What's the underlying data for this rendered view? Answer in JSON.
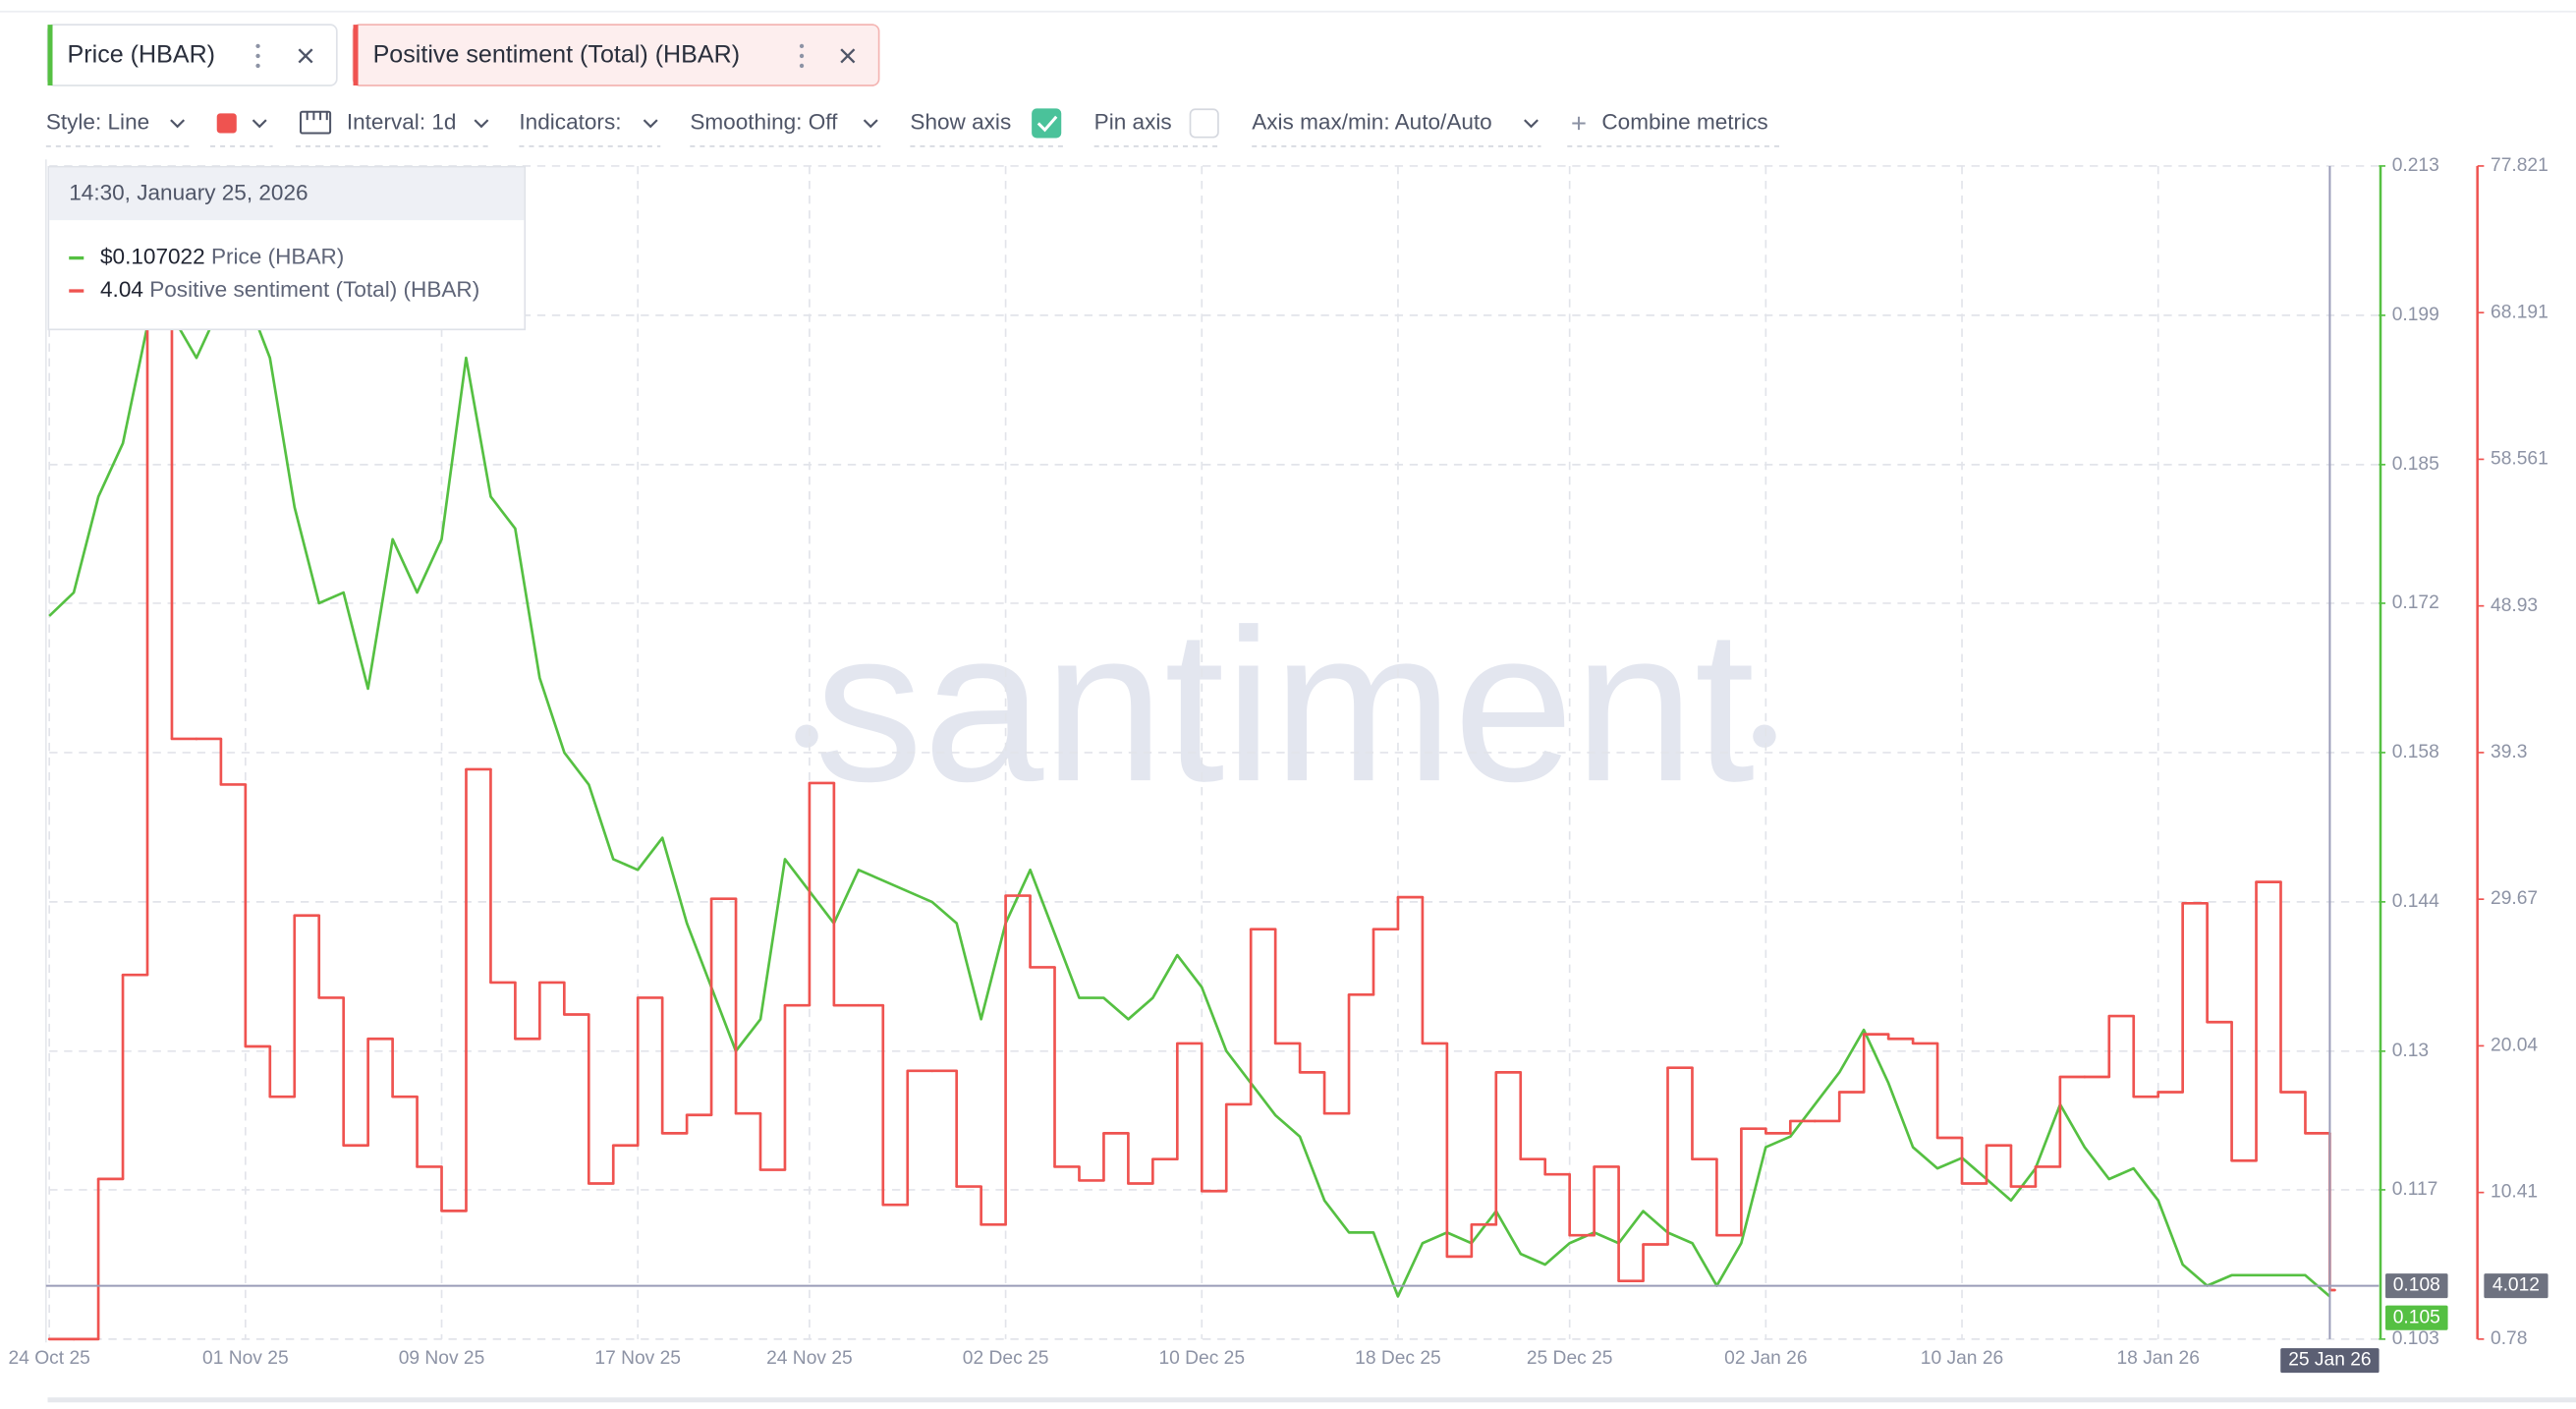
{
  "chart_data": {
    "type": "line",
    "tabs": [
      "Price (HBAR)",
      "Positive sentiment (Total) (HBAR)"
    ],
    "toolbar": [
      "Style: Line",
      "Interval: 1d",
      "Indicators:",
      "Smoothing: Off",
      "Show axis",
      "Pin axis",
      "Axis max/min: Auto/Auto",
      "Combine metrics"
    ],
    "tooltip": {
      "date": "14:30, January 25, 2026",
      "values": [
        "$0.107022",
        "4.04"
      ]
    },
    "watermark": "santiment",
    "x": [
      "2025-10-24",
      "2025-10-25",
      "2025-10-26",
      "2025-10-27",
      "2025-10-28",
      "2025-10-29",
      "2025-10-30",
      "2025-10-31",
      "2025-11-01",
      "2025-11-02",
      "2025-11-03",
      "2025-11-04",
      "2025-11-05",
      "2025-11-06",
      "2025-11-07",
      "2025-11-08",
      "2025-11-09",
      "2025-11-10",
      "2025-11-11",
      "2025-11-12",
      "2025-11-13",
      "2025-11-14",
      "2025-11-15",
      "2025-11-16",
      "2025-11-17",
      "2025-11-18",
      "2025-11-19",
      "2025-11-20",
      "2025-11-21",
      "2025-11-22",
      "2025-11-23",
      "2025-11-24",
      "2025-11-25",
      "2025-11-26",
      "2025-11-27",
      "2025-11-28",
      "2025-11-29",
      "2025-11-30",
      "2025-12-01",
      "2025-12-02",
      "2025-12-03",
      "2025-12-04",
      "2025-12-05",
      "2025-12-06",
      "2025-12-07",
      "2025-12-08",
      "2025-12-09",
      "2025-12-10",
      "2025-12-11",
      "2025-12-12",
      "2025-12-13",
      "2025-12-14",
      "2025-12-15",
      "2025-12-16",
      "2025-12-17",
      "2025-12-18",
      "2025-12-19",
      "2025-12-20",
      "2025-12-21",
      "2025-12-22",
      "2025-12-23",
      "2025-12-24",
      "2025-12-25",
      "2025-12-26",
      "2025-12-27",
      "2025-12-28",
      "2025-12-29",
      "2025-12-30",
      "2025-12-31",
      "2026-01-01",
      "2026-01-02",
      "2026-01-03",
      "2026-01-04",
      "2026-01-05",
      "2026-01-06",
      "2026-01-07",
      "2026-01-08",
      "2026-01-09",
      "2026-01-10",
      "2026-01-11",
      "2026-01-12",
      "2026-01-13",
      "2026-01-14",
      "2026-01-15",
      "2026-01-16",
      "2026-01-17",
      "2026-01-18",
      "2026-01-19",
      "2026-01-20",
      "2026-01-21",
      "2026-01-22",
      "2026-01-23",
      "2026-01-24",
      "2026-01-25"
    ],
    "series": [
      {
        "name": "Price (HBAR)",
        "color": "#55c042",
        "axis": "y",
        "values": [
          0.1708,
          0.173,
          0.182,
          0.187,
          0.198,
          0.199,
          0.195,
          0.2,
          0.201,
          0.195,
          0.181,
          0.172,
          0.173,
          0.164,
          0.178,
          0.173,
          0.178,
          0.195,
          0.182,
          0.179,
          0.165,
          0.158,
          0.155,
          0.148,
          0.147,
          0.15,
          0.142,
          0.136,
          0.13,
          0.133,
          0.148,
          0.145,
          0.142,
          0.147,
          0.146,
          0.145,
          0.144,
          0.142,
          0.133,
          0.142,
          0.147,
          0.141,
          0.135,
          0.135,
          0.133,
          0.135,
          0.139,
          0.136,
          0.13,
          0.127,
          0.124,
          0.122,
          0.116,
          0.113,
          0.113,
          0.107,
          0.112,
          0.113,
          0.112,
          0.115,
          0.111,
          0.11,
          0.112,
          0.113,
          0.112,
          0.115,
          0.113,
          0.112,
          0.108,
          0.112,
          0.121,
          0.122,
          0.125,
          0.128,
          0.132,
          0.127,
          0.121,
          0.119,
          0.12,
          0.118,
          0.116,
          0.119,
          0.125,
          0.121,
          0.118,
          0.119,
          0.116,
          0.11,
          0.108,
          0.109,
          0.109,
          0.109,
          0.109,
          0.107
        ]
      },
      {
        "name": "Positive sentiment (Total) (HBAR)",
        "color": "#ef5350",
        "axis": "y2",
        "step": true,
        "values": [
          0.78,
          0.78,
          11.3,
          24.7,
          75.8,
          40.2,
          40.2,
          37.2,
          20.0,
          16.7,
          28.6,
          23.2,
          13.5,
          20.5,
          16.7,
          12.1,
          9.2,
          38.2,
          24.2,
          20.5,
          24.2,
          22.1,
          11.0,
          13.5,
          23.2,
          14.3,
          15.5,
          29.7,
          15.6,
          11.9,
          22.7,
          37.3,
          22.7,
          22.7,
          9.6,
          18.4,
          18.4,
          10.8,
          8.3,
          29.9,
          25.2,
          12.1,
          11.2,
          14.3,
          11.0,
          12.6,
          20.2,
          10.5,
          16.2,
          27.7,
          20.2,
          18.3,
          15.6,
          23.4,
          27.7,
          29.8,
          20.2,
          6.2,
          8.3,
          18.3,
          12.6,
          11.6,
          7.6,
          12.1,
          4.6,
          7.0,
          18.6,
          12.6,
          7.6,
          14.6,
          14.3,
          15.1,
          15.1,
          17.0,
          20.8,
          20.5,
          20.2,
          14.0,
          11.0,
          13.5,
          10.8,
          12.1,
          18.0,
          18.0,
          22.0,
          16.7,
          17.0,
          29.4,
          21.6,
          12.5,
          30.8,
          17.0,
          14.3,
          4.0
        ]
      }
    ],
    "xlim": [
      "2025-10-24",
      "2026-01-27"
    ],
    "xticks": [
      {
        "value": "2025-10-24",
        "label": "24 Oct 25"
      },
      {
        "value": "2025-11-01",
        "label": "01 Nov 25"
      },
      {
        "value": "2025-11-09",
        "label": "09 Nov 25"
      },
      {
        "value": "2025-11-17",
        "label": "17 Nov 25"
      },
      {
        "value": "2025-11-24",
        "label": "24 Nov 25"
      },
      {
        "value": "2025-12-02",
        "label": "02 Dec 25"
      },
      {
        "value": "2025-12-10",
        "label": "10 Dec 25"
      },
      {
        "value": "2025-12-18",
        "label": "18 Dec 25"
      },
      {
        "value": "2025-12-25",
        "label": "25 Dec 25"
      },
      {
        "value": "2026-01-02",
        "label": "02 Jan 26"
      },
      {
        "value": "2026-01-10",
        "label": "10 Jan 26"
      },
      {
        "value": "2026-01-18",
        "label": "18 Jan 26"
      }
    ],
    "ylim": [
      0.103,
      0.213
    ],
    "yticks": [
      0.103,
      0.117,
      0.13,
      0.144,
      0.158,
      0.172,
      0.185,
      0.199,
      0.213
    ],
    "y2lim": [
      0.78,
      77.821
    ],
    "y2ticks": [
      0.78,
      10.41,
      20.04,
      29.67,
      39.3,
      48.93,
      58.561,
      68.191,
      77.821
    ],
    "grid": true,
    "crosshair": {
      "date": "25 Jan 26",
      "price": 0.108,
      "sentiment": 4.012
    },
    "last_price": 0.105
  }
}
